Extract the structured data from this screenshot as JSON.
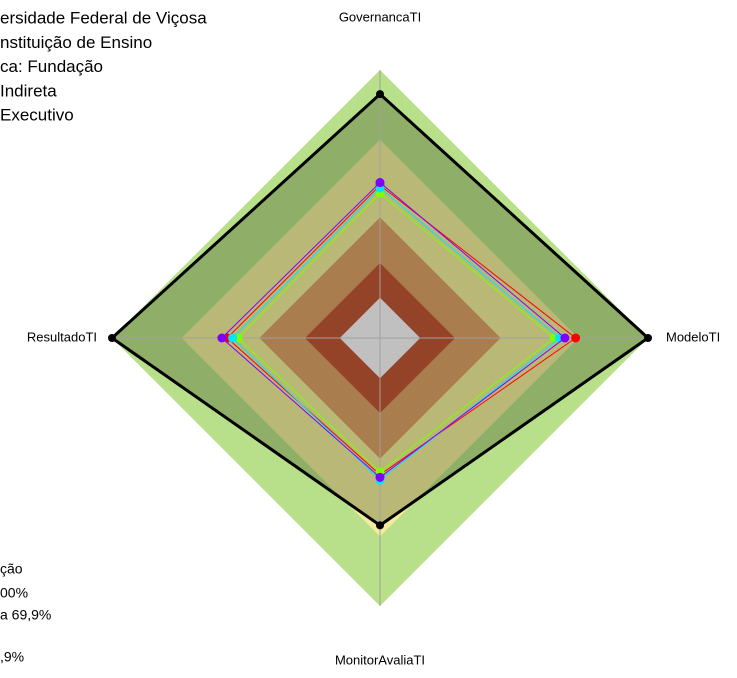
{
  "chart_data": {
    "type": "radar",
    "header_lines": [
      "ersidade Federal de Viçosa",
      "nstituição de Ensino",
      "ca: Fundação",
      "Indireta",
      "Executivo"
    ],
    "footer_lines": [
      "ção",
      "00%",
      "a 69,9%",
      ",9%"
    ],
    "categories": [
      "GovernancaTI",
      "ModeloTI",
      "MonitorAvaliaTI",
      "ResultadoTI"
    ],
    "rlim": [
      0,
      100
    ],
    "bands": [
      {
        "to": 100,
        "color": "#b8e08a"
      },
      {
        "to": 74,
        "color": "#f3ec9c"
      },
      {
        "to": 45,
        "color": "#dd9a66"
      },
      {
        "to": 28,
        "color": "#c04a30"
      },
      {
        "to": 15,
        "color": "#c0c0c0"
      }
    ],
    "series": [
      {
        "color": "#000000",
        "values": [
          91,
          100,
          69.9,
          100
        ]
      },
      {
        "color": "#ff0000",
        "values": [
          57,
          73,
          51,
          57
        ]
      },
      {
        "color": "#7fff00",
        "values": [
          54,
          65,
          50,
          53
        ]
      },
      {
        "color": "#00e5ff",
        "values": [
          56,
          67,
          53,
          55
        ]
      },
      {
        "color": "#8000ff",
        "values": [
          58,
          69,
          52,
          59
        ]
      }
    ]
  }
}
